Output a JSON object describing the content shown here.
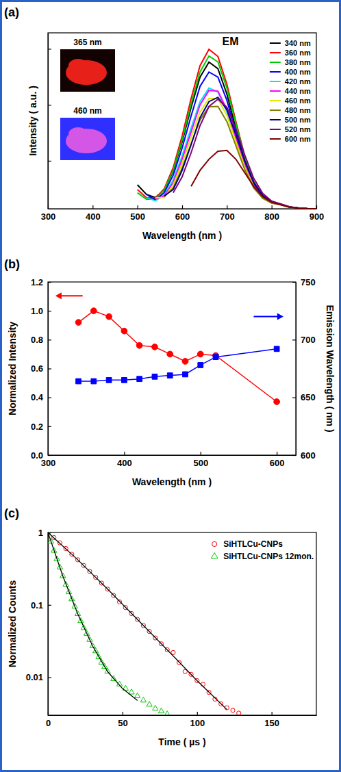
{
  "chart_data": [
    {
      "type": "line",
      "panel": "(a)",
      "title": "EM",
      "annotations": [
        "365 nm",
        "460 nm"
      ],
      "x_label": "Wavelength (nm )",
      "y_label": "Intensity ( a.u. )",
      "xlim": [
        300,
        900
      ],
      "xticks": [
        300,
        400,
        500,
        600,
        700,
        800,
        900
      ],
      "ylim": [
        0,
        1.1
      ],
      "yticks": [
        0.3,
        0.65,
        1.0
      ],
      "tick_labels": "x",
      "legend": "top-right",
      "x": [
        500,
        520,
        540,
        560,
        580,
        600,
        620,
        640,
        660,
        680,
        700,
        720,
        740,
        760,
        780,
        800,
        820,
        840,
        860,
        880,
        900
      ],
      "series": [
        {
          "name": "340 nm",
          "color": "#000000",
          "values": [
            0.15,
            0.09,
            0.07,
            0.115,
            0.236,
            0.419,
            0.634,
            0.823,
            0.917,
            0.876,
            0.717,
            0.503,
            0.303,
            0.156,
            0.078,
            0.041,
            0.028,
            0.011,
            0.004,
            0.001,
            0
          ]
        },
        {
          "name": "360 nm",
          "color": "#ff0000",
          "values": [
            0.12,
            0.07,
            0.065,
            0.125,
            0.257,
            0.455,
            0.689,
            0.895,
            0.997,
            0.952,
            0.779,
            0.547,
            0.329,
            0.17,
            0.085,
            0.045,
            0.03,
            0.012,
            0.004,
            0.001,
            0
          ]
        },
        {
          "name": "380 nm",
          "color": "#00cc00",
          "values": [
            0.1,
            0.06,
            0.06,
            0.118,
            0.24,
            0.43,
            0.655,
            0.855,
            0.955,
            0.918,
            0.755,
            0.535,
            0.325,
            0.168,
            0.083,
            0.044,
            0.029,
            0.012,
            0.004,
            0.001,
            0
          ]
        },
        {
          "name": "400 nm",
          "color": "#0000ff",
          "values": [
            null,
            0.09,
            0.055,
            0.1,
            0.21,
            0.38,
            0.58,
            0.765,
            0.855,
            0.823,
            0.678,
            0.48,
            0.292,
            0.152,
            0.075,
            0.04,
            0.027,
            0.011,
            0.004,
            0.001,
            0
          ]
        },
        {
          "name": "420 nm",
          "color": "#00e5ee",
          "values": [
            null,
            0.07,
            0.05,
            0.085,
            0.18,
            0.33,
            0.505,
            0.67,
            0.755,
            0.73,
            0.605,
            0.43,
            0.262,
            0.137,
            0.068,
            0.036,
            0.024,
            0.01,
            0.004,
            0.001,
            0
          ]
        },
        {
          "name": "440 nm",
          "color": "#ff00ff",
          "values": [
            null,
            null,
            0.06,
            0.08,
            0.165,
            0.31,
            0.48,
            0.65,
            0.74,
            0.735,
            0.62,
            0.445,
            0.275,
            0.145,
            0.072,
            0.038,
            0.026,
            0.011,
            0.004,
            0.001,
            0
          ]
        },
        {
          "name": "460 nm",
          "color": "#e6e600",
          "values": [
            null,
            null,
            0.07,
            0.07,
            0.15,
            0.285,
            0.445,
            0.605,
            0.69,
            0.688,
            0.583,
            0.42,
            0.26,
            0.138,
            0.068,
            0.036,
            0.025,
            0.01,
            0.004,
            0.001,
            0
          ]
        },
        {
          "name": "480 nm",
          "color": "#808000",
          "values": [
            null,
            null,
            null,
            0.075,
            0.13,
            0.255,
            0.405,
            0.555,
            0.638,
            0.64,
            0.545,
            0.395,
            0.245,
            0.13,
            0.065,
            0.035,
            0.024,
            0.01,
            0.004,
            0.001,
            0
          ]
        },
        {
          "name": "500 nm",
          "color": "#000080",
          "values": [
            null,
            null,
            null,
            0.08,
            0.12,
            0.24,
            0.4,
            0.57,
            0.67,
            0.697,
            0.62,
            0.465,
            0.3,
            0.165,
            0.082,
            0.042,
            0.028,
            0.011,
            0.004,
            0.001,
            0
          ]
        },
        {
          "name": "520 nm",
          "color": "#800080",
          "values": [
            null,
            null,
            null,
            null,
            0.1,
            0.2,
            0.35,
            0.52,
            0.64,
            0.685,
            0.635,
            0.5,
            0.335,
            0.19,
            0.096,
            0.048,
            0.03,
            0.012,
            0.005,
            0.001,
            0
          ]
        },
        {
          "name": "600 nm",
          "color": "#800000",
          "values": [
            null,
            null,
            null,
            null,
            null,
            null,
            0.14,
            0.24,
            0.31,
            0.36,
            0.365,
            0.31,
            0.225,
            0.14,
            0.075,
            0.04,
            0.025,
            0.01,
            0.004,
            0.001,
            0
          ]
        }
      ]
    },
    {
      "type": "line",
      "panel": "(b)",
      "x_label": "Wavelength (nm )",
      "y_label": "Normalized Intensity",
      "y2_label": "Emission Wavelength ( nm )",
      "xlim": [
        300,
        625
      ],
      "xticks": [
        300,
        400,
        500,
        600
      ],
      "ylim": [
        0,
        1.2
      ],
      "yticks": [
        {
          "value": 0,
          "label": "0.0"
        },
        0.2,
        0.4,
        0.6,
        0.8,
        {
          "value": 1,
          "label": "1.0"
        },
        1.2
      ],
      "y2lim": [
        600,
        750
      ],
      "y2ticks": [
        600,
        650,
        700,
        750
      ],
      "x": [
        340,
        360,
        380,
        400,
        420,
        440,
        460,
        480,
        500,
        520,
        600
      ],
      "series": [
        {
          "color": "#ff0000",
          "marker": "circle",
          "values": [
            0.92,
            1.0,
            0.96,
            0.86,
            0.76,
            0.75,
            0.7,
            0.65,
            0.7,
            0.69,
            0.37
          ]
        },
        {
          "color": "#0000ff",
          "marker": "square",
          "axis": "y2",
          "values": [
            664,
            664,
            665,
            665,
            666,
            668,
            669,
            670,
            678,
            685,
            692
          ]
        }
      ]
    },
    {
      "type": "scatter",
      "panel": "(c)",
      "log": "y",
      "x_label": "Time ( µs )",
      "y_label": "Normalized Counts",
      "xlim": [
        0,
        180
      ],
      "xticks": [
        0,
        50,
        100,
        150
      ],
      "ylim": [
        0.003,
        1
      ],
      "yticks": [
        0.01,
        0.1,
        1
      ],
      "legend": "top-right",
      "series": [
        {
          "name": "SiHTLCu-CNPs",
          "color": "#ff0000",
          "marker": "circle-open",
          "x": [
            0,
            4,
            8,
            12,
            16,
            20,
            24,
            28,
            32,
            36,
            40,
            44,
            48,
            52,
            56,
            60,
            64,
            68,
            72,
            76,
            80,
            84,
            88,
            92,
            96,
            100,
            104,
            108,
            112,
            116,
            120,
            124,
            128
          ],
          "values": [
            1,
            0.85,
            0.72,
            0.6,
            0.5,
            0.42,
            0.35,
            0.29,
            0.24,
            0.2,
            0.165,
            0.135,
            0.11,
            0.092,
            0.076,
            0.063,
            0.052,
            0.043,
            0.035,
            0.029,
            0.024,
            0.022,
            0.016,
            0.012,
            0.011,
            0.009,
            0.008,
            0.0062,
            0.005,
            0.0043,
            0.0038,
            0.0035,
            0.0032
          ]
        },
        {
          "name": "SiHTLCu-CNPs 12mon.",
          "color": "#00c800",
          "marker": "triangle-open",
          "x": [
            0,
            2,
            4,
            6,
            8,
            10,
            12,
            14,
            16,
            18,
            20,
            22,
            24,
            26,
            28,
            30,
            32,
            34,
            36,
            38,
            40,
            44,
            48,
            52,
            56,
            60,
            64,
            68,
            72,
            76,
            80
          ],
          "values": [
            1,
            0.75,
            0.56,
            0.43,
            0.33,
            0.25,
            0.19,
            0.15,
            0.12,
            0.095,
            0.075,
            0.06,
            0.048,
            0.04,
            0.033,
            0.027,
            0.023,
            0.019,
            0.016,
            0.014,
            0.012,
            0.0095,
            0.008,
            0.007,
            0.0062,
            0.0055,
            0.0048,
            0.0042,
            0.0037,
            0.0034,
            0.0031
          ]
        },
        {
          "type": "line",
          "color": "#000000",
          "line_style": "solid",
          "x": [
            0,
            20,
            40,
            60,
            80,
            100,
            120
          ],
          "values": [
            1,
            0.42,
            0.165,
            0.063,
            0.024,
            0.009,
            0.0036
          ]
        },
        {
          "type": "line",
          "color": "#000000",
          "line_style": "solid",
          "x": [
            0,
            10,
            20,
            30,
            40,
            50,
            60
          ],
          "values": [
            1,
            0.25,
            0.075,
            0.027,
            0.012,
            0.007,
            0.0048
          ]
        }
      ]
    }
  ]
}
